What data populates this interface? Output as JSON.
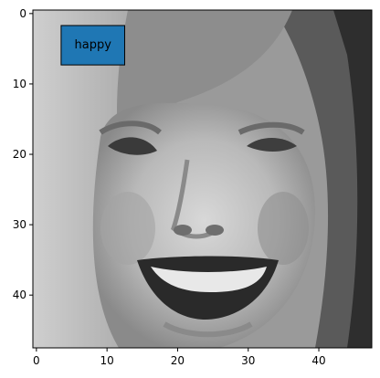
{
  "image": {
    "kind": "grayscale-face-pixel-image",
    "grid": {
      "cols": 48,
      "rows": 48
    },
    "origin": "upper"
  },
  "annotation": {
    "label": "happy",
    "box_x": [
      3.5,
      12.5
    ],
    "box_y": [
      1.7,
      7.3
    ],
    "box_color": "#1f77b4",
    "edge_color": "#000000"
  },
  "axes": {
    "xlim": [
      -0.5,
      47.5
    ],
    "ylim": [
      47.5,
      -0.5
    ],
    "x_ticks": [
      {
        "value": 0,
        "label": "0"
      },
      {
        "value": 10,
        "label": "10"
      },
      {
        "value": 20,
        "label": "20"
      },
      {
        "value": 30,
        "label": "30"
      },
      {
        "value": 40,
        "label": "40"
      }
    ],
    "y_ticks": [
      {
        "value": 0,
        "label": "0"
      },
      {
        "value": 10,
        "label": "10"
      },
      {
        "value": 20,
        "label": "20"
      },
      {
        "value": 30,
        "label": "30"
      },
      {
        "value": 40,
        "label": "40"
      }
    ]
  }
}
